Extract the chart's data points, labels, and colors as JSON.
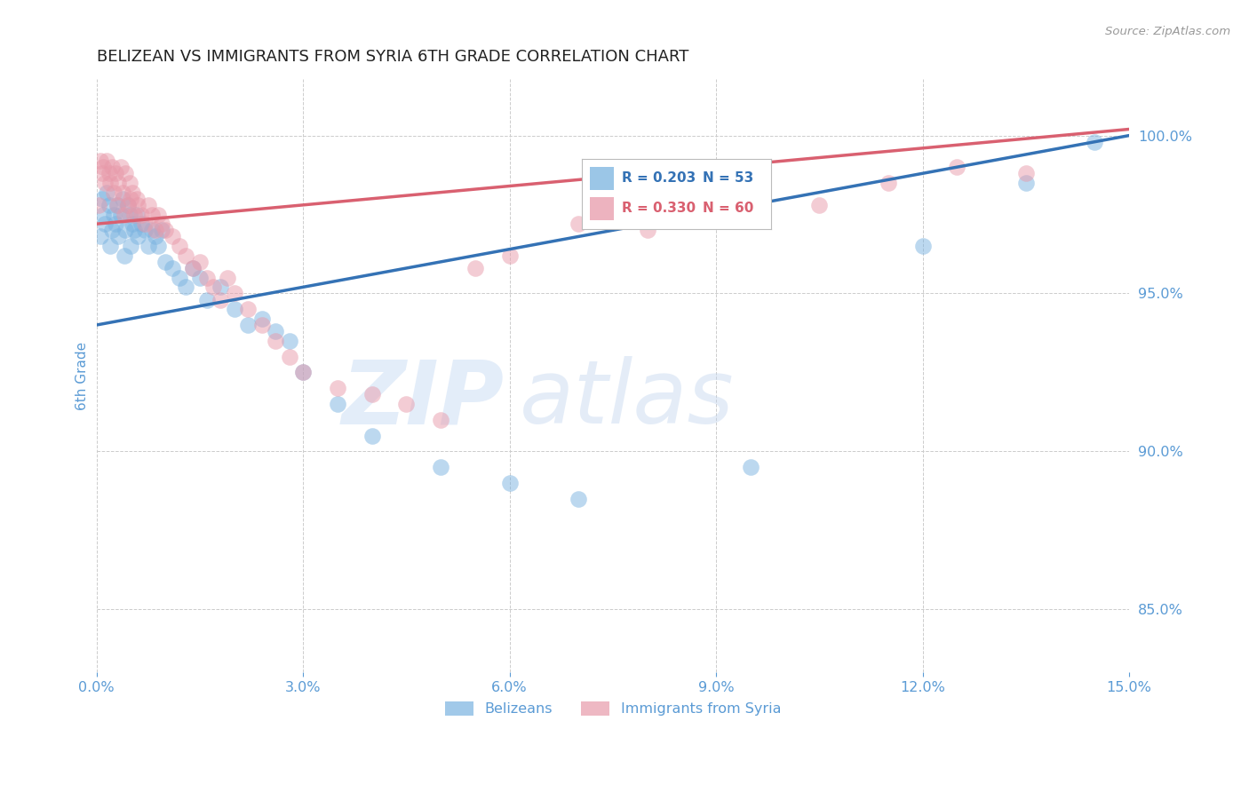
{
  "title": "BELIZEAN VS IMMIGRANTS FROM SYRIA 6TH GRADE CORRELATION CHART",
  "source": "Source: ZipAtlas.com",
  "ylabel": "6th Grade",
  "xmin": 0.0,
  "xmax": 15.0,
  "ymin": 83.0,
  "ymax": 101.8,
  "yticks": [
    85.0,
    90.0,
    95.0,
    100.0
  ],
  "xticks": [
    0.0,
    3.0,
    6.0,
    9.0,
    12.0,
    15.0
  ],
  "blue_color": "#7ab3e0",
  "pink_color": "#e89aaa",
  "blue_line_color": "#3472b5",
  "pink_line_color": "#d96070",
  "legend_blue_R": "R = 0.203",
  "legend_blue_N": "N = 53",
  "legend_pink_R": "R = 0.330",
  "legend_pink_N": "N = 60",
  "blue_line_x0": 0.0,
  "blue_line_y0": 94.0,
  "blue_line_x1": 15.0,
  "blue_line_y1": 100.0,
  "pink_line_x0": 0.0,
  "pink_line_y0": 97.2,
  "pink_line_x1": 15.0,
  "pink_line_y1": 100.2,
  "blue_scatter_x": [
    0.05,
    0.08,
    0.1,
    0.12,
    0.15,
    0.18,
    0.2,
    0.22,
    0.25,
    0.28,
    0.3,
    0.32,
    0.35,
    0.38,
    0.4,
    0.42,
    0.45,
    0.48,
    0.5,
    0.52,
    0.55,
    0.58,
    0.6,
    0.65,
    0.7,
    0.75,
    0.8,
    0.85,
    0.9,
    0.95,
    1.0,
    1.1,
    1.2,
    1.3,
    1.4,
    1.5,
    1.6,
    1.8,
    2.0,
    2.2,
    2.4,
    2.6,
    2.8,
    3.0,
    3.5,
    4.0,
    5.0,
    6.0,
    7.0,
    9.5,
    12.0,
    13.5,
    14.5
  ],
  "blue_scatter_y": [
    96.8,
    98.0,
    97.5,
    97.2,
    98.2,
    97.8,
    96.5,
    97.0,
    97.5,
    97.2,
    97.8,
    96.8,
    97.5,
    98.0,
    96.2,
    97.0,
    97.8,
    97.5,
    96.5,
    97.2,
    97.0,
    97.5,
    96.8,
    97.2,
    97.0,
    96.5,
    97.0,
    96.8,
    96.5,
    97.0,
    96.0,
    95.8,
    95.5,
    95.2,
    95.8,
    95.5,
    94.8,
    95.2,
    94.5,
    94.0,
    94.2,
    93.8,
    93.5,
    92.5,
    91.5,
    90.5,
    89.5,
    89.0,
    88.5,
    89.5,
    96.5,
    98.5,
    99.8
  ],
  "pink_scatter_x": [
    0.03,
    0.05,
    0.08,
    0.1,
    0.12,
    0.15,
    0.18,
    0.2,
    0.22,
    0.25,
    0.28,
    0.3,
    0.32,
    0.35,
    0.38,
    0.4,
    0.42,
    0.45,
    0.48,
    0.5,
    0.52,
    0.55,
    0.58,
    0.6,
    0.65,
    0.7,
    0.75,
    0.8,
    0.85,
    0.9,
    0.95,
    1.0,
    1.1,
    1.2,
    1.3,
    1.4,
    1.5,
    1.6,
    1.7,
    1.8,
    1.9,
    2.0,
    2.2,
    2.4,
    2.6,
    2.8,
    3.0,
    3.5,
    4.0,
    4.5,
    5.0,
    5.5,
    6.0,
    7.0,
    8.0,
    9.0,
    10.5,
    11.5,
    12.5,
    13.5
  ],
  "pink_scatter_y": [
    97.8,
    99.2,
    98.8,
    99.0,
    98.5,
    99.2,
    98.8,
    98.5,
    99.0,
    98.2,
    98.8,
    97.8,
    98.5,
    99.0,
    98.2,
    97.5,
    98.8,
    97.8,
    98.5,
    98.0,
    98.2,
    97.5,
    98.0,
    97.8,
    97.5,
    97.2,
    97.8,
    97.5,
    97.0,
    97.5,
    97.2,
    97.0,
    96.8,
    96.5,
    96.2,
    95.8,
    96.0,
    95.5,
    95.2,
    94.8,
    95.5,
    95.0,
    94.5,
    94.0,
    93.5,
    93.0,
    92.5,
    92.0,
    91.8,
    91.5,
    91.0,
    95.8,
    96.2,
    97.2,
    97.0,
    97.5,
    97.8,
    98.5,
    99.0,
    98.8
  ],
  "watermark_zip": "ZIP",
  "watermark_atlas": "atlas",
  "background_color": "#ffffff",
  "grid_color": "#cccccc",
  "axis_label_color": "#5b9bd5",
  "title_color": "#222222"
}
